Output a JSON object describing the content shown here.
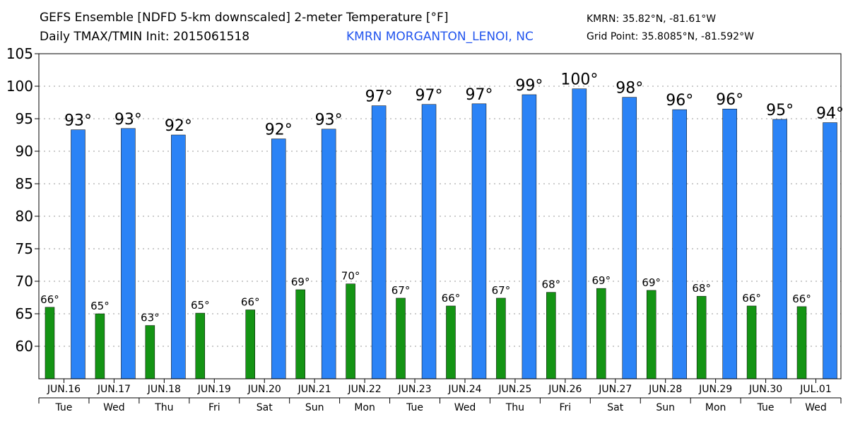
{
  "header": {
    "title_line1": "GEFS Ensemble [NDFD 5-km downscaled] 2-meter Temperature [°F]",
    "title_line2": "Daily TMAX/TMIN Init: 2015061518",
    "station": "KMRN MORGANTON_LENOI, NC",
    "station_coords": "KMRN: 35.82°N, -81.61°W",
    "grid_point": "Grid Point: 35.8085°N, -81.592°W"
  },
  "colors": {
    "tmax": "#2b83f6",
    "tmin": "#149414",
    "station_text": "#2255ee"
  },
  "chart_data": {
    "type": "bar",
    "ylim": [
      55,
      105
    ],
    "yticks": [
      60,
      65,
      70,
      75,
      80,
      85,
      90,
      95,
      100,
      105
    ],
    "grid": true,
    "categories": [
      "JUN.16",
      "JUN.17",
      "JUN.18",
      "JUN.19",
      "JUN.20",
      "JUN.21",
      "JUN.22",
      "JUN.23",
      "JUN.24",
      "JUN.25",
      "JUN.26",
      "JUN.27",
      "JUN.28",
      "JUN.29",
      "JUN.30",
      "JUL.01"
    ],
    "weekdays": [
      "Tue",
      "Wed",
      "Thu",
      "Fri",
      "Sat",
      "Sun",
      "Mon",
      "Tue",
      "Wed",
      "Thu",
      "Fri",
      "Sat",
      "Sun",
      "Mon",
      "Tue",
      "Wed"
    ],
    "series": [
      {
        "key": "tmin",
        "values": [
          66.0,
          65.0,
          63.2,
          65.1,
          65.6,
          68.7,
          69.6,
          67.4,
          66.2,
          67.4,
          68.3,
          68.9,
          68.6,
          67.7,
          66.2,
          66.1
        ],
        "labels": [
          "66°",
          "65°",
          "63°",
          "65°",
          "66°",
          "69°",
          "70°",
          "67°",
          "66°",
          "67°",
          "68°",
          "69°",
          "69°",
          "68°",
          "66°",
          "66°"
        ]
      },
      {
        "key": "tmax",
        "values": [
          93.3,
          93.5,
          92.5,
          null,
          91.9,
          93.4,
          97.0,
          97.2,
          97.3,
          98.7,
          99.6,
          98.3,
          96.4,
          96.5,
          94.9,
          94.4
        ],
        "labels": [
          "93°",
          "93°",
          "92°",
          "",
          "92°",
          "93°",
          "97°",
          "97°",
          "97°",
          "99°",
          "100°",
          "98°",
          "96°",
          "96°",
          "95°",
          "94°"
        ]
      }
    ]
  }
}
